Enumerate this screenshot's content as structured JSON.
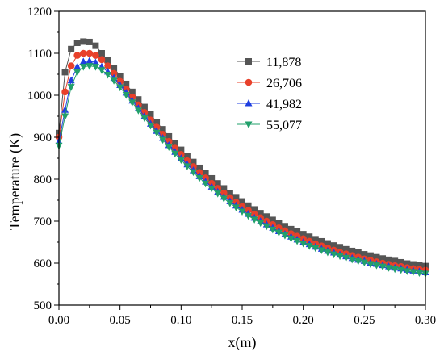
{
  "chart_data": {
    "type": "line",
    "title": "",
    "xlabel": "x(m)",
    "ylabel": "Temperature (K)",
    "xlim": [
      0,
      0.3
    ],
    "ylim": [
      500,
      1200
    ],
    "xticks": [
      "0.00",
      "0.05",
      "0.10",
      "0.15",
      "0.20",
      "0.25",
      "0.30"
    ],
    "yticks": [
      "500",
      "600",
      "700",
      "800",
      "900",
      "1000",
      "1100",
      "1200"
    ],
    "grid": false,
    "legend_position": "top-right",
    "x": [
      0,
      0.005,
      0.01,
      0.015,
      0.02,
      0.025,
      0.03,
      0.035,
      0.04,
      0.045,
      0.05,
      0.055,
      0.06,
      0.065,
      0.07,
      0.075,
      0.08,
      0.085,
      0.09,
      0.095,
      0.1,
      0.105,
      0.11,
      0.115,
      0.12,
      0.125,
      0.13,
      0.135,
      0.14,
      0.145,
      0.15,
      0.155,
      0.16,
      0.165,
      0.17,
      0.175,
      0.18,
      0.185,
      0.19,
      0.195,
      0.2,
      0.205,
      0.21,
      0.215,
      0.22,
      0.225,
      0.23,
      0.235,
      0.24,
      0.245,
      0.25,
      0.255,
      0.26,
      0.265,
      0.27,
      0.275,
      0.28,
      0.285,
      0.29,
      0.295,
      0.3
    ],
    "series": [
      {
        "name": "11,878",
        "color": "#555555",
        "marker": "square",
        "values": [
          910,
          1055,
          1110,
          1125,
          1128,
          1127,
          1118,
          1100,
          1083,
          1065,
          1046,
          1027,
          1008,
          990,
          972,
          954,
          936,
          919,
          902,
          886,
          870,
          855,
          841,
          827,
          814,
          802,
          790,
          778,
          767,
          757,
          747,
          737,
          728,
          719,
          711,
          703,
          695,
          688,
          681,
          675,
          669,
          663,
          657,
          652,
          647,
          642,
          638,
          633,
          629,
          625,
          621,
          618,
          614,
          611,
          608,
          605,
          602,
          599,
          597,
          595,
          593
        ]
      },
      {
        "name": "26,706",
        "color": "#e8402a",
        "marker": "circle",
        "values": [
          900,
          1008,
          1070,
          1095,
          1100,
          1100,
          1095,
          1085,
          1070,
          1052,
          1033,
          1015,
          996,
          977,
          959,
          941,
          924,
          907,
          890,
          874,
          859,
          844,
          830,
          816,
          803,
          790,
          778,
          767,
          756,
          745,
          735,
          726,
          717,
          708,
          700,
          692,
          684,
          677,
          670,
          664,
          658,
          652,
          646,
          641,
          636,
          631,
          626,
          622,
          618,
          614,
          610,
          607,
          603,
          600,
          597,
          594,
          592,
          589,
          587,
          585,
          583
        ]
      },
      {
        "name": "41,982",
        "color": "#1f3fe0",
        "marker": "triangle-up",
        "values": [
          890,
          965,
          1035,
          1068,
          1080,
          1082,
          1078,
          1068,
          1056,
          1041,
          1024,
          1006,
          987,
          969,
          950,
          932,
          915,
          898,
          881,
          865,
          850,
          835,
          821,
          807,
          794,
          782,
          770,
          758,
          747,
          737,
          727,
          717,
          708,
          700,
          692,
          684,
          676,
          669,
          663,
          656,
          650,
          645,
          639,
          634,
          629,
          625,
          620,
          616,
          612,
          608,
          605,
          601,
          598,
          595,
          592,
          589,
          587,
          584,
          582,
          580,
          578
        ]
      },
      {
        "name": "55,077",
        "color": "#22a06b",
        "marker": "triangle-down",
        "values": [
          880,
          950,
          1020,
          1055,
          1068,
          1070,
          1068,
          1060,
          1049,
          1035,
          1019,
          1001,
          983,
          964,
          946,
          928,
          911,
          894,
          877,
          861,
          846,
          831,
          817,
          803,
          790,
          778,
          766,
          754,
          743,
          733,
          723,
          713,
          704,
          696,
          688,
          680,
          673,
          666,
          659,
          653,
          647,
          641,
          636,
          631,
          626,
          621,
          617,
          613,
          609,
          605,
          602,
          598,
          595,
          592,
          589,
          586,
          584,
          581,
          579,
          577,
          575
        ]
      }
    ]
  }
}
